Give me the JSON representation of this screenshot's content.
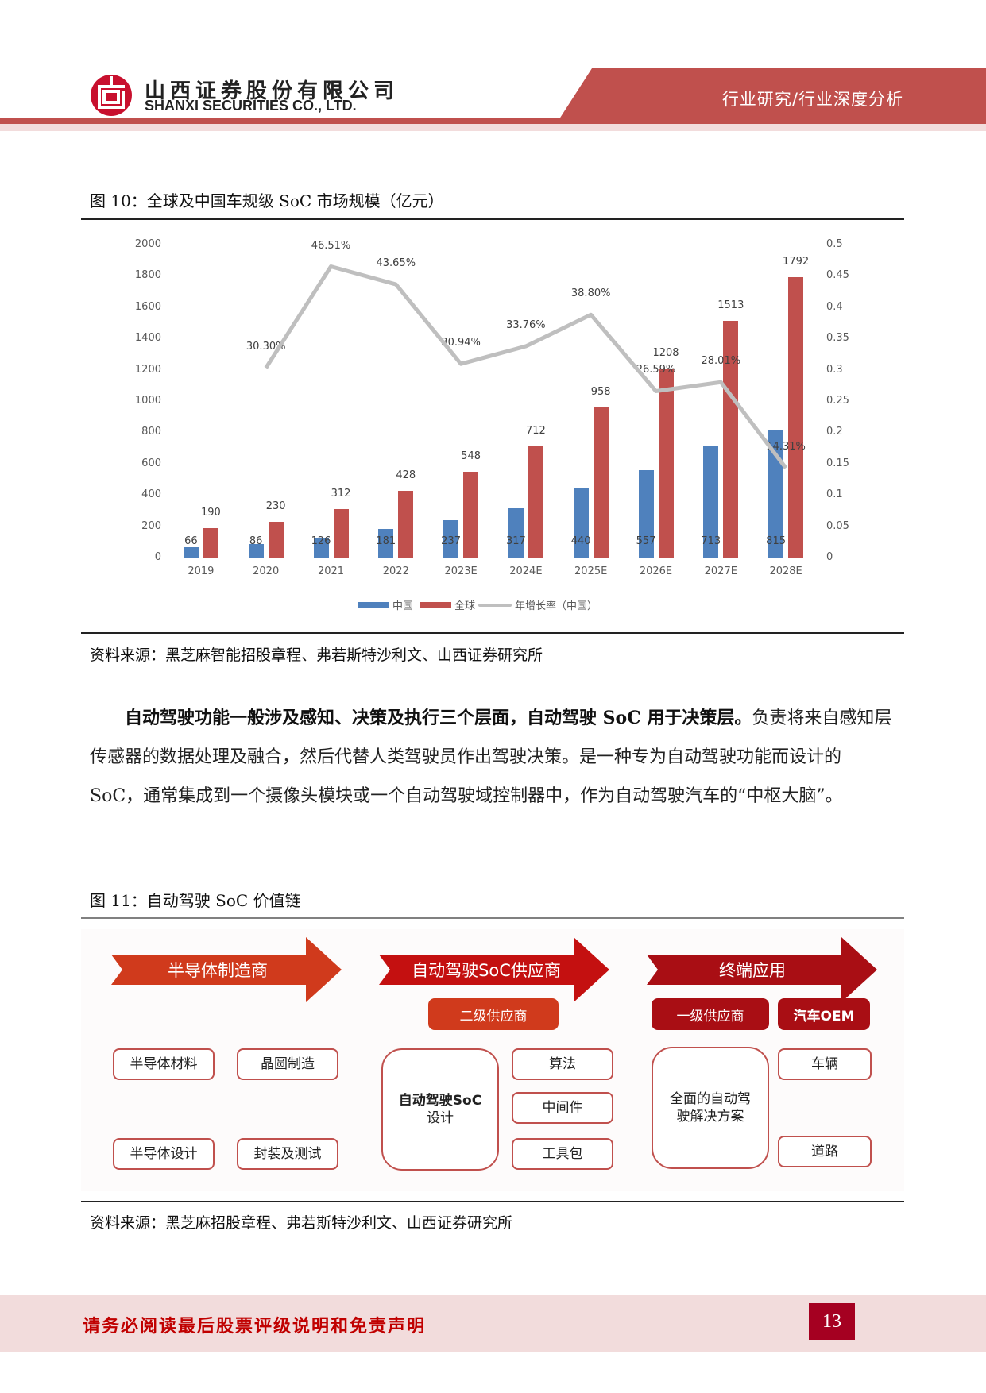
{
  "header": {
    "company_cn": "山西证券股份有限公司",
    "company_en": "SHANXI SECURITIES CO., LTD.",
    "section": "行业研究/行业深度分析",
    "colors": {
      "brand_red": "#c0504d",
      "band_pink": "#f2dcdc",
      "logo_red": "#c8102e"
    }
  },
  "figure10": {
    "title": "图 10：全球及中国车规级 SoC 市场规模（亿元）",
    "source": "资料来源：黑芝麻智能招股章程、弗若斯特沙利文、山西证券研究所"
  },
  "chart_data": {
    "type": "bar",
    "title": "全球及中国车规级 SoC 市场规模（亿元）",
    "categories": [
      "2019",
      "2020",
      "2021",
      "2022",
      "2023E",
      "2024E",
      "2025E",
      "2026E",
      "2027E",
      "2028E"
    ],
    "series": [
      {
        "name": "中国",
        "type": "bar",
        "axis": "left",
        "color": "#4f81bd",
        "values": [
          66,
          86,
          126,
          181,
          237,
          317,
          440,
          557,
          713,
          815
        ]
      },
      {
        "name": "全球",
        "type": "bar",
        "axis": "left",
        "color": "#c0504d",
        "values": [
          190,
          230,
          312,
          428,
          548,
          712,
          958,
          1208,
          1513,
          1792
        ]
      },
      {
        "name": "年增长率（中国）",
        "type": "line",
        "axis": "right",
        "color": "#bfbfbf",
        "values": [
          null,
          0.303,
          0.4651,
          0.4365,
          0.3094,
          0.3376,
          0.388,
          0.2659,
          0.2801,
          0.1431
        ],
        "labels": [
          "",
          "30.30%",
          "46.51%",
          "43.65%",
          "30.94%",
          "33.76%",
          "38.80%",
          "26.59%",
          "28.01%",
          "14.31%"
        ]
      }
    ],
    "yticks": [
      "2000",
      "1800",
      "1600",
      "1400",
      "1200",
      "1000",
      "800",
      "600",
      "400",
      "200",
      "0"
    ],
    "y2ticks": [
      "0.5",
      "0.45",
      "0.4",
      "0.35",
      "0.3",
      "0.25",
      "0.2",
      "0.15",
      "0.1",
      "0.05",
      "0"
    ],
    "ylim": [
      0,
      2000
    ],
    "y2lim": [
      0,
      0.5
    ],
    "xlabel": "",
    "ylabel": "",
    "grid": false,
    "legend_position": "bottom",
    "legend": [
      "中国",
      "全球",
      "年增长率（中国）"
    ]
  },
  "paragraph": {
    "bold": "自动驾驶功能一般涉及感知、决策及执行三个层面，自动驾驶 SoC 用于决策层。",
    "rest": "负责将来自感知层传感器的数据处理及融合，然后代替人类驾驶员作出驾驶决策。是一种专为自动驾驶功能而设计的 SoC，通常集成到一个摄像头模块或一个自动驾驶域控制器中，作为自动驾驶汽车的“中枢大脑”。"
  },
  "figure11": {
    "title": "图 11：自动驾驶 SoC 价值链",
    "source": "资料来源：黑芝麻招股章程、弗若斯特沙利文、山西证券研究所",
    "arrows": [
      "半导体制造商",
      "自动驾驶SoC供应商",
      "终端应用"
    ],
    "pills": [
      "二级供应商",
      "一级供应商",
      "汽车OEM"
    ],
    "boxes": {
      "semi_materials": "半导体材料",
      "wafer": "晶圆制造",
      "semi_design": "半导体设计",
      "packaging": "封装及测试",
      "soc_design_1": "自动驾驶SoC",
      "soc_design_2": "设计",
      "algorithm": "算法",
      "middleware": "中间件",
      "toolkit": "工具包",
      "solution_1": "全面的自动驾",
      "solution_2": "驶解决方案",
      "vehicle": "车辆",
      "road": "道路"
    }
  },
  "footer": {
    "disclaimer": "请务必阅读最后股票评级说明和免责声明",
    "page": "13"
  }
}
